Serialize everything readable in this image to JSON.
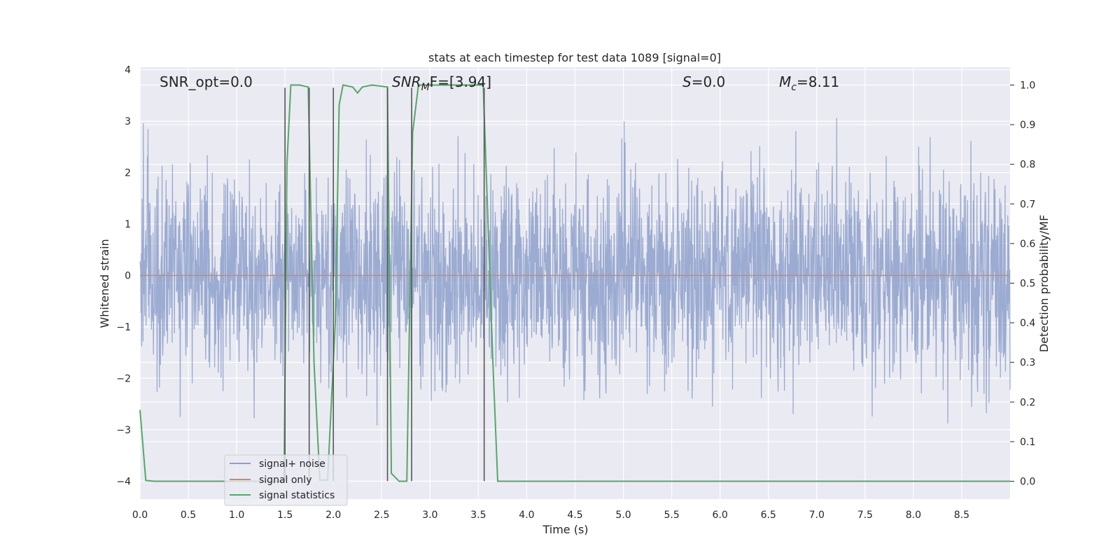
{
  "chart_data": {
    "type": "line",
    "title": "stats at each timestep for test data 1089 [signal=0]",
    "xlabel": "Time (s)",
    "ylabel_left": "Whitened strain",
    "ylabel_right": "Detection probability/MF",
    "xlim": [
      0.0,
      9.0
    ],
    "ylim_left": [
      -4.35,
      4.05
    ],
    "ylim_right": [
      -0.045,
      1.045
    ],
    "x_ticks": [
      "0.0",
      "0.5",
      "1.0",
      "1.5",
      "2.0",
      "2.5",
      "3.0",
      "3.5",
      "4.0",
      "4.5",
      "5.0",
      "5.5",
      "6.0",
      "6.5",
      "7.0",
      "7.5",
      "8.0",
      "8.5"
    ],
    "x_tick_values": [
      0.0,
      0.5,
      1.0,
      1.5,
      2.0,
      2.5,
      3.0,
      3.5,
      4.0,
      4.5,
      5.0,
      5.5,
      6.0,
      6.5,
      7.0,
      7.5,
      8.0,
      8.5
    ],
    "y_ticks_left": [
      "−4",
      "−3",
      "−2",
      "−1",
      "0",
      "1",
      "2",
      "3",
      "4"
    ],
    "y_tick_values_left": [
      -4,
      -3,
      -2,
      -1,
      0,
      1,
      2,
      3,
      4
    ],
    "y_ticks_right": [
      "0.0",
      "0.1",
      "0.2",
      "0.3",
      "0.4",
      "0.5",
      "0.6",
      "0.7",
      "0.8",
      "0.9",
      "1.0"
    ],
    "y_tick_values_right": [
      0.0,
      0.1,
      0.2,
      0.3,
      0.4,
      0.5,
      0.6,
      0.7,
      0.8,
      0.9,
      1.0
    ],
    "grid": true,
    "legend_placement": "lower-left",
    "annotations": {
      "snr_opt": "SNR_opt=0.0",
      "snr_mf_main": "SNR",
      "snr_mf_sub": "M",
      "snr_mf_rest": "F=[3.94]",
      "s_main": "S",
      "s_rest": "=0.0",
      "mc_main": "M",
      "mc_sub": "c",
      "mc_rest": "=8.11"
    },
    "series": [
      {
        "name": "signal+ noise",
        "color": "#8da0cb",
        "noise_model": "gaussian whitened noise",
        "amplitude_range": [
          -3.6,
          3.6
        ]
      },
      {
        "name": "signal only",
        "color": "#dd8452",
        "values": [
          [
            0.0,
            0.0
          ],
          [
            9.0,
            0.0
          ]
        ]
      },
      {
        "name": "signal statistics",
        "color": "#55a868",
        "axis": "right",
        "values": [
          [
            0.0,
            0.18
          ],
          [
            0.06,
            0.002
          ],
          [
            0.15,
            0.0
          ],
          [
            1.49,
            0.0
          ],
          [
            1.52,
            0.8
          ],
          [
            1.56,
            1.0
          ],
          [
            1.65,
            1.0
          ],
          [
            1.74,
            0.995
          ],
          [
            1.8,
            0.3
          ],
          [
            1.86,
            0.003
          ],
          [
            1.94,
            0.003
          ],
          [
            2.02,
            0.4
          ],
          [
            2.06,
            0.95
          ],
          [
            2.1,
            1.0
          ],
          [
            2.2,
            0.995
          ],
          [
            2.25,
            0.98
          ],
          [
            2.3,
            0.995
          ],
          [
            2.4,
            1.0
          ],
          [
            2.56,
            0.995
          ],
          [
            2.6,
            0.02
          ],
          [
            2.68,
            0.0
          ],
          [
            2.76,
            0.0
          ],
          [
            2.82,
            0.88
          ],
          [
            2.88,
            1.0
          ],
          [
            3.4,
            1.0
          ],
          [
            3.55,
            1.0
          ],
          [
            3.65,
            0.3
          ],
          [
            3.7,
            0.0
          ],
          [
            9.0,
            0.0
          ]
        ]
      }
    ],
    "vertical_markers": [
      1.5,
      1.75,
      2.0,
      2.56,
      2.81,
      3.56
    ],
    "marker_range_left": [
      -4.0,
      3.65
    ],
    "marker_color": "#555555"
  }
}
